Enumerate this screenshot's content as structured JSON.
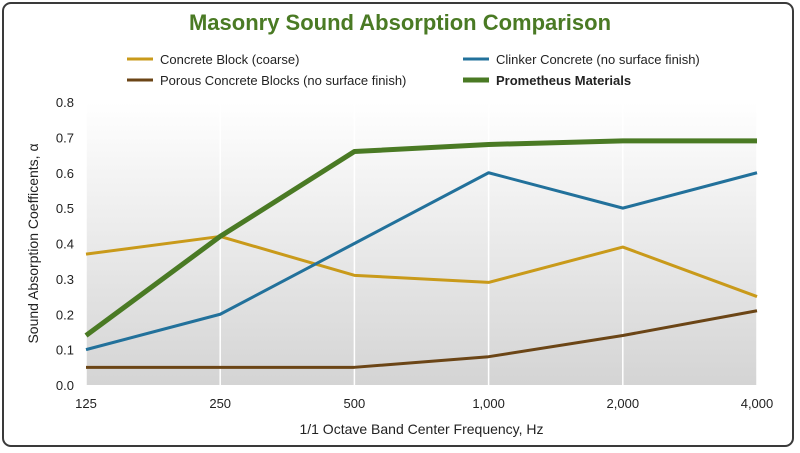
{
  "chart_data": {
    "type": "line",
    "title": "Masonry Sound Absorption Comparison",
    "xlabel": "1/1 Octave Band Center Frequency, Hz",
    "ylabel": "Sound Absorption Coefficents, α",
    "categories": [
      "125",
      "250",
      "500",
      "1,000",
      "2,000",
      "4,000"
    ],
    "ylim": [
      0,
      0.8
    ],
    "yticks": [
      "0.0",
      "0.1",
      "0.2",
      "0.3",
      "0.4",
      "0.5",
      "0.6",
      "0.7",
      "0.8"
    ],
    "grid": "vertical",
    "legend_position": "top",
    "series": [
      {
        "name": "Concrete Block (coarse)",
        "color": "#c99a1a",
        "values": [
          0.37,
          0.42,
          0.31,
          0.29,
          0.39,
          0.25
        ]
      },
      {
        "name": "Clinker Concrete (no surface finish)",
        "color": "#22719b",
        "values": [
          0.1,
          0.2,
          0.4,
          0.6,
          0.5,
          0.6
        ]
      },
      {
        "name": "Porous Concrete Blocks (no surface finish)",
        "color": "#6b4516",
        "values": [
          0.05,
          0.05,
          0.05,
          0.08,
          0.14,
          0.21
        ]
      },
      {
        "name": "Prometheus Materials",
        "color": "#4a7a24",
        "bold": true,
        "values": [
          0.14,
          0.42,
          0.66,
          0.68,
          0.69,
          0.69
        ]
      }
    ]
  }
}
